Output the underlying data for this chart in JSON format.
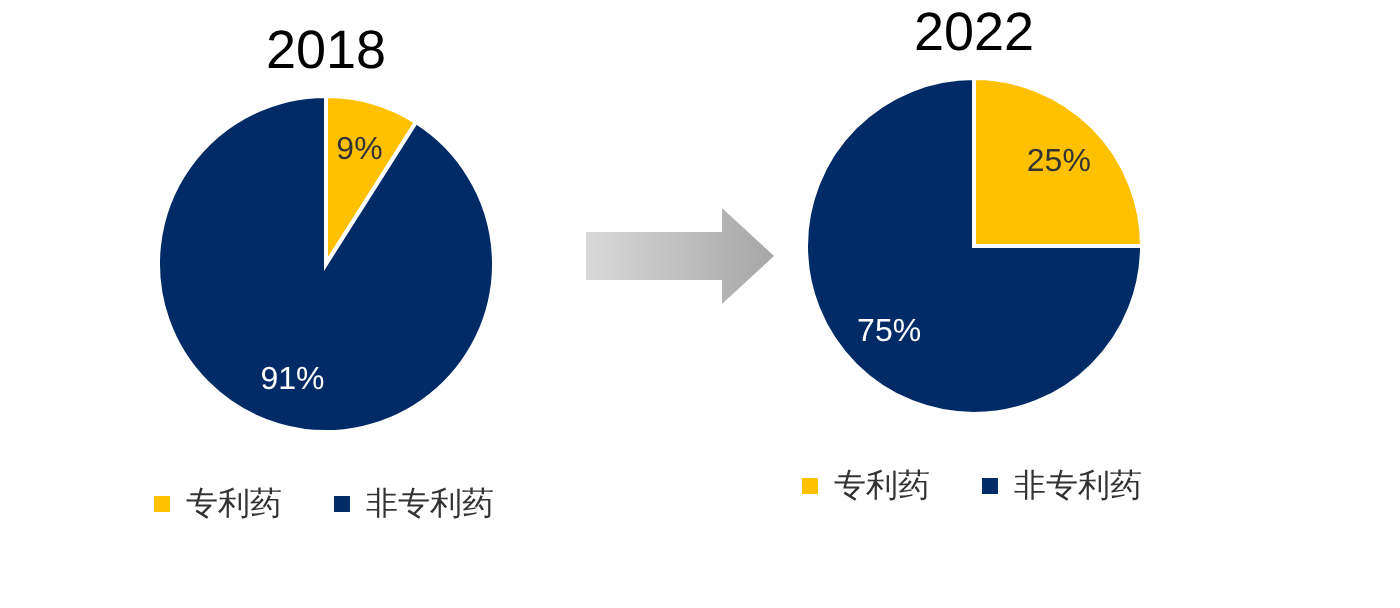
{
  "chart_data": [
    {
      "type": "pie",
      "title": "2018",
      "categories": [
        "专利药",
        "非专利药"
      ],
      "values": [
        9,
        91
      ],
      "value_labels": [
        "9%",
        "91%"
      ],
      "colors": [
        "#ffc000",
        "#002b66"
      ],
      "legend": "bottom"
    },
    {
      "type": "pie",
      "title": "2022",
      "categories": [
        "专利药",
        "非专利药"
      ],
      "values": [
        25,
        75
      ],
      "value_labels": [
        "25%",
        "75%"
      ],
      "colors": [
        "#ffc000",
        "#002b66"
      ],
      "legend": "bottom"
    }
  ]
}
